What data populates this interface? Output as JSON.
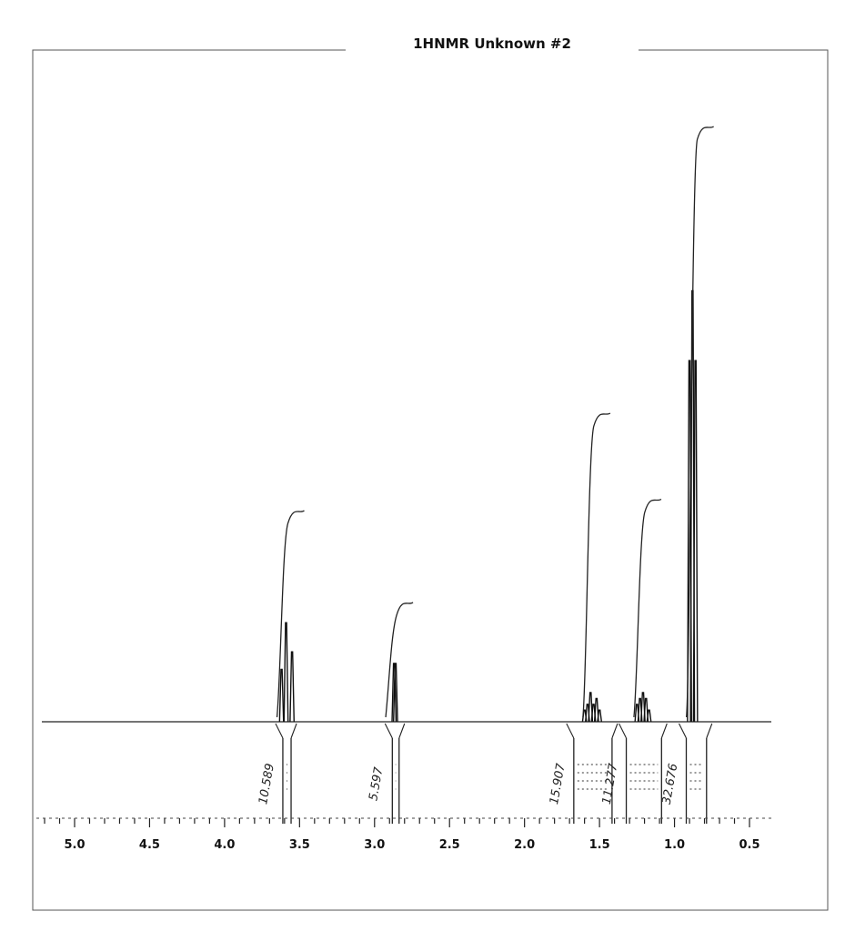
{
  "chart_data": {
    "type": "line",
    "title": "1HNMR Unknown #2",
    "xlabel": "",
    "ylabel": "",
    "xlim": [
      5.2,
      0.4
    ],
    "x_reversed": true,
    "ticks": [
      5.0,
      4.5,
      4.0,
      3.5,
      3.0,
      2.5,
      2.0,
      1.5,
      1.0,
      0.5
    ],
    "tick_labels": [
      "5.0",
      "4.5",
      "4.0",
      "3.5",
      "3.0",
      "2.5",
      "2.0",
      "1.5",
      "1.0",
      "0.5"
    ],
    "grid": false,
    "peaks": [
      {
        "name": "3.6 multiplet",
        "center": 3.59,
        "lines": [
          3.62,
          3.59,
          3.55
        ],
        "heights": [
          0.09,
          0.17,
          0.12
        ]
      },
      {
        "name": "2.85 singlet",
        "center": 2.86,
        "lines": [
          2.87,
          2.86
        ],
        "heights": [
          0.1,
          0.1
        ]
      },
      {
        "name": "1.5 multiplet",
        "center": 1.55,
        "lines": [
          1.6,
          1.58,
          1.56,
          1.54,
          1.52,
          1.5
        ],
        "heights": [
          0.02,
          0.03,
          0.05,
          0.03,
          0.04,
          0.02
        ]
      },
      {
        "name": "1.2 multiplet",
        "center": 1.21,
        "lines": [
          1.25,
          1.23,
          1.21,
          1.19,
          1.17
        ],
        "heights": [
          0.03,
          0.04,
          0.05,
          0.04,
          0.02
        ]
      },
      {
        "name": "0.88 triplet",
        "center": 0.88,
        "lines": [
          0.9,
          0.88,
          0.86
        ],
        "heights": [
          0.62,
          0.74,
          0.62
        ]
      }
    ],
    "integrals": [
      {
        "label": "10.589",
        "from": 3.66,
        "to": 3.52
      },
      {
        "label": "5.597",
        "from": 2.93,
        "to": 2.8
      },
      {
        "label": "15.907",
        "from": 1.72,
        "to": 1.38
      },
      {
        "label": "11.277",
        "from": 1.37,
        "to": 1.05
      },
      {
        "label": "32.676",
        "from": 0.97,
        "to": 0.75
      }
    ]
  }
}
